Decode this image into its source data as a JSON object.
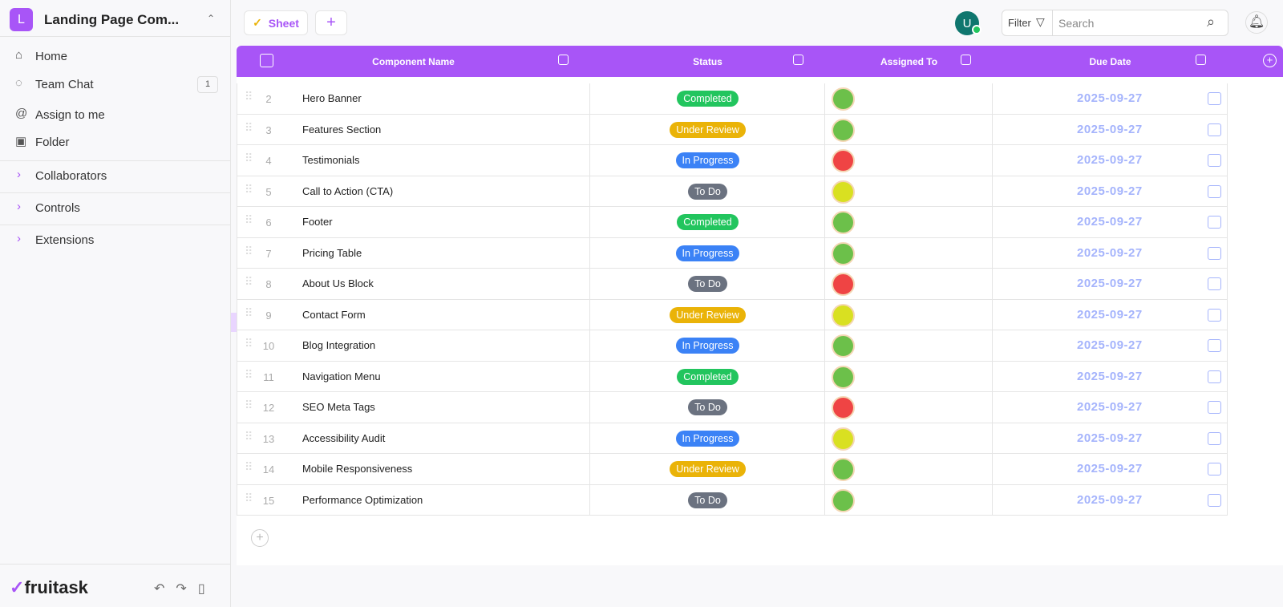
{
  "sidebar": {
    "workspace_initial": "L",
    "workspace_name": "Landing Page Com...",
    "nav": [
      {
        "label": "Home"
      },
      {
        "label": "Team Chat",
        "badge": "1"
      },
      {
        "label": "Assign to me"
      },
      {
        "label": "Folder"
      }
    ],
    "sections": [
      "Collaborators",
      "Controls",
      "Extensions"
    ],
    "brand": "fruitask"
  },
  "toolbar": {
    "tab": "Sheet",
    "user_initial": "U",
    "filter": "Filter",
    "search_placeholder": "Search"
  },
  "table": {
    "headers": [
      "Component Name",
      "Status",
      "Assigned To",
      "Due Date"
    ],
    "rows": [
      {
        "num": "2",
        "name": "Hero Banner",
        "status": "Completed",
        "status_color": "#22c55e",
        "assignee_color": "#6cc04a",
        "due": "2025-09-27"
      },
      {
        "num": "3",
        "name": "Features Section",
        "status": "Under Review",
        "status_color": "#eab308",
        "assignee_color": "#6cc04a",
        "due": "2025-09-27"
      },
      {
        "num": "4",
        "name": "Testimonials",
        "status": "In Progress",
        "status_color": "#3b82f6",
        "assignee_color": "#ef4444",
        "due": "2025-09-27"
      },
      {
        "num": "5",
        "name": "Call to Action (CTA)",
        "status": "To Do",
        "status_color": "#6b7280",
        "assignee_color": "#d9e021",
        "due": "2025-09-27"
      },
      {
        "num": "6",
        "name": "Footer",
        "status": "Completed",
        "status_color": "#22c55e",
        "assignee_color": "#6cc04a",
        "due": "2025-09-27"
      },
      {
        "num": "7",
        "name": "Pricing Table",
        "status": "In Progress",
        "status_color": "#3b82f6",
        "assignee_color": "#6cc04a",
        "due": "2025-09-27"
      },
      {
        "num": "8",
        "name": "About Us Block",
        "status": "To Do",
        "status_color": "#6b7280",
        "assignee_color": "#ef4444",
        "due": "2025-09-27"
      },
      {
        "num": "9",
        "name": "Contact Form",
        "status": "Under Review",
        "status_color": "#eab308",
        "assignee_color": "#d9e021",
        "due": "2025-09-27"
      },
      {
        "num": "10",
        "name": "Blog Integration",
        "status": "In Progress",
        "status_color": "#3b82f6",
        "assignee_color": "#6cc04a",
        "due": "2025-09-27"
      },
      {
        "num": "11",
        "name": "Navigation Menu",
        "status": "Completed",
        "status_color": "#22c55e",
        "assignee_color": "#6cc04a",
        "due": "2025-09-27"
      },
      {
        "num": "12",
        "name": "SEO Meta Tags",
        "status": "To Do",
        "status_color": "#6b7280",
        "assignee_color": "#ef4444",
        "due": "2025-09-27"
      },
      {
        "num": "13",
        "name": "Accessibility Audit",
        "status": "In Progress",
        "status_color": "#3b82f6",
        "assignee_color": "#d9e021",
        "due": "2025-09-27"
      },
      {
        "num": "14",
        "name": "Mobile Responsiveness",
        "status": "Under Review",
        "status_color": "#eab308",
        "assignee_color": "#6cc04a",
        "due": "2025-09-27"
      },
      {
        "num": "15",
        "name": "Performance Optimization",
        "status": "To Do",
        "status_color": "#6b7280",
        "assignee_color": "#6cc04a",
        "due": "2025-09-27"
      }
    ]
  }
}
